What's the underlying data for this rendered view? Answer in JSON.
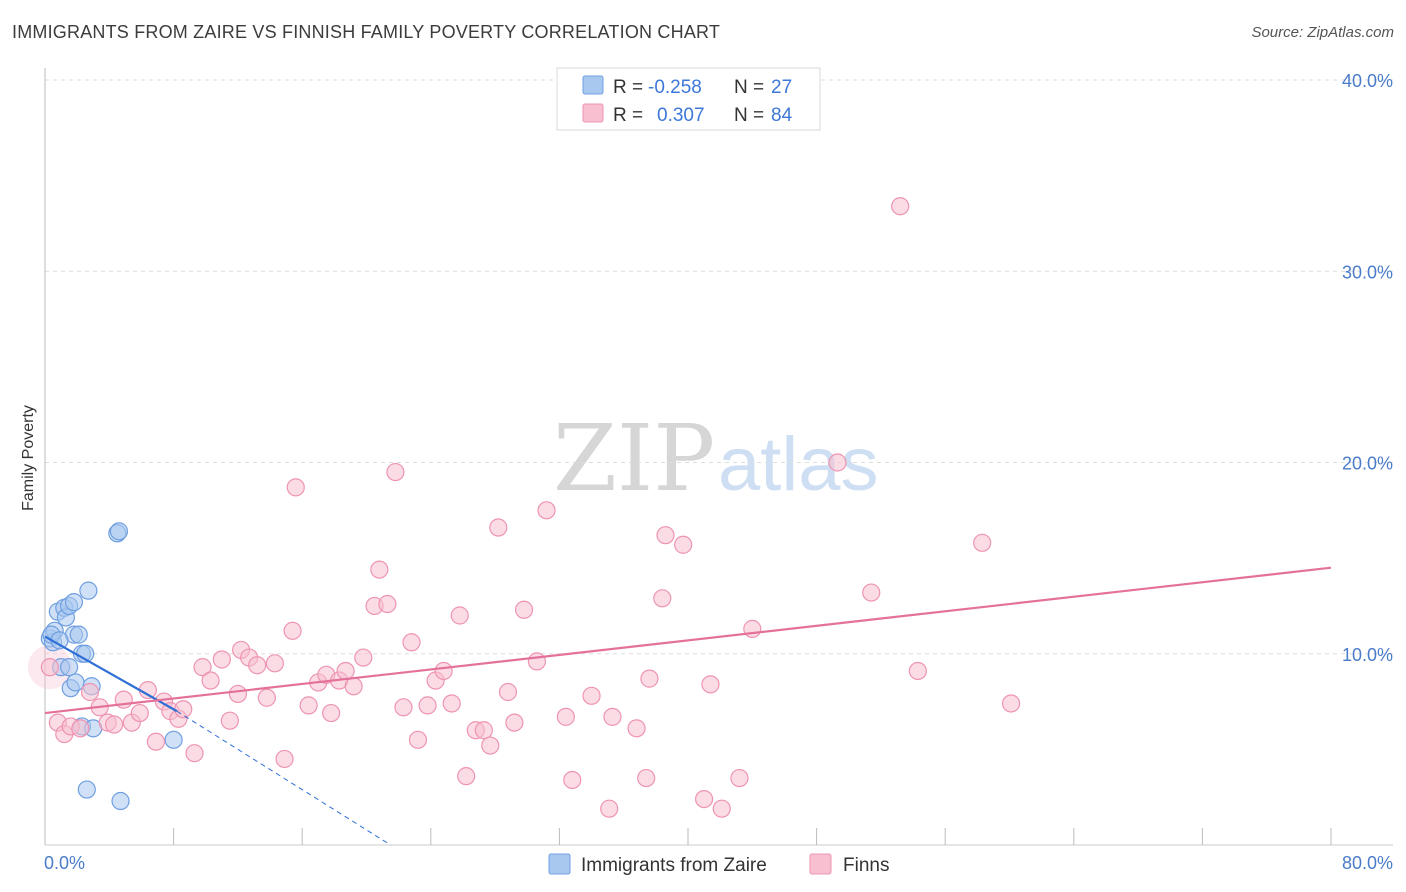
{
  "title": "IMMIGRANTS FROM ZAIRE VS FINNISH FAMILY POVERTY CORRELATION CHART",
  "source": "Source: ZipAtlas.com",
  "watermark": {
    "zip": "ZIP",
    "atlas": "atlas"
  },
  "colors": {
    "blue_fill": "#a9c8f0",
    "blue_stroke": "#6f9fe0",
    "blue_line": "#2f6fd6",
    "pink_fill": "#f7bfd0",
    "pink_stroke": "#ee94b2",
    "pink_line": "#e4719a",
    "tick_text": "#4a7cc9",
    "grid": "#dddddd"
  },
  "legend": {
    "rows": [
      {
        "r_label": "R =",
        "r_value": "-0.258",
        "n_label": "N =",
        "n_value": "27",
        "series": "blue"
      },
      {
        "r_label": "R =",
        "r_value": "0.307",
        "n_label": "N =",
        "n_value": "84",
        "series": "pink"
      }
    ]
  },
  "chart_data": {
    "type": "scatter",
    "title": "IMMIGRANTS FROM ZAIRE VS FINNISH FAMILY POVERTY CORRELATION CHART",
    "xlabel": "",
    "ylabel": "Family Poverty",
    "xlim": [
      0,
      80
    ],
    "ylim": [
      0,
      40
    ],
    "x_tick_labels": [
      "0.0%",
      "80.0%"
    ],
    "y_ticks": [
      10,
      20,
      30,
      40
    ],
    "y_tick_labels": [
      "10.0%",
      "20.0%",
      "30.0%",
      "40.0%"
    ],
    "grid": true,
    "legend_position": "top-center",
    "series": [
      {
        "name": "Immigrants from Zaire",
        "color": "blue",
        "r": -0.258,
        "n": 27,
        "trend": {
          "x0": 0,
          "y0": 10.9,
          "x1": 8.2,
          "y1": 7.0,
          "dashed_to_x": 21.5,
          "dashed_to_y": 0
        },
        "points": [
          [
            0.3,
            10.8
          ],
          [
            0.5,
            10.6
          ],
          [
            0.6,
            11.2
          ],
          [
            0.8,
            12.2
          ],
          [
            1.0,
            9.3
          ],
          [
            1.2,
            12.4
          ],
          [
            1.3,
            11.9
          ],
          [
            1.5,
            12.5
          ],
          [
            1.5,
            9.3
          ],
          [
            1.6,
            8.2
          ],
          [
            1.8,
            12.7
          ],
          [
            1.8,
            11.0
          ],
          [
            1.9,
            8.5
          ],
          [
            2.1,
            11.0
          ],
          [
            2.3,
            6.2
          ],
          [
            2.3,
            10.0
          ],
          [
            2.5,
            10.0
          ],
          [
            2.7,
            13.3
          ],
          [
            2.9,
            8.3
          ],
          [
            3.0,
            6.1
          ],
          [
            4.5,
            16.3
          ],
          [
            4.6,
            16.4
          ],
          [
            8.0,
            5.5
          ],
          [
            2.6,
            2.9
          ],
          [
            4.7,
            2.3
          ],
          [
            0.4,
            11.0
          ],
          [
            0.9,
            10.7
          ]
        ]
      },
      {
        "name": "Finns",
        "color": "pink",
        "r": 0.307,
        "n": 84,
        "trend": {
          "x0": 0,
          "y0": 6.9,
          "x1": 80,
          "y1": 14.5
        },
        "points": [
          [
            0.3,
            9.3
          ],
          [
            0.8,
            6.4
          ],
          [
            1.2,
            5.8
          ],
          [
            1.6,
            6.2
          ],
          [
            2.2,
            6.1
          ],
          [
            2.8,
            8.0
          ],
          [
            3.4,
            7.2
          ],
          [
            3.9,
            6.4
          ],
          [
            4.3,
            6.3
          ],
          [
            4.9,
            7.6
          ],
          [
            5.4,
            6.4
          ],
          [
            5.9,
            6.9
          ],
          [
            6.4,
            8.1
          ],
          [
            6.9,
            5.4
          ],
          [
            7.4,
            7.5
          ],
          [
            7.8,
            7.0
          ],
          [
            8.3,
            6.6
          ],
          [
            8.6,
            7.1
          ],
          [
            9.3,
            4.8
          ],
          [
            9.8,
            9.3
          ],
          [
            10.3,
            8.6
          ],
          [
            11.0,
            9.7
          ],
          [
            11.5,
            6.5
          ],
          [
            12.0,
            7.9
          ],
          [
            12.2,
            10.2
          ],
          [
            12.7,
            9.8
          ],
          [
            13.2,
            9.4
          ],
          [
            13.8,
            7.7
          ],
          [
            14.3,
            9.5
          ],
          [
            14.9,
            4.5
          ],
          [
            15.4,
            11.2
          ],
          [
            15.6,
            18.7
          ],
          [
            16.4,
            7.3
          ],
          [
            17.0,
            8.5
          ],
          [
            17.5,
            8.9
          ],
          [
            17.8,
            6.9
          ],
          [
            18.3,
            8.6
          ],
          [
            18.7,
            9.1
          ],
          [
            19.2,
            8.3
          ],
          [
            19.8,
            9.8
          ],
          [
            20.5,
            12.5
          ],
          [
            20.8,
            14.4
          ],
          [
            21.3,
            12.6
          ],
          [
            21.8,
            19.5
          ],
          [
            22.3,
            7.2
          ],
          [
            22.8,
            10.6
          ],
          [
            23.2,
            5.5
          ],
          [
            23.8,
            7.3
          ],
          [
            24.3,
            8.6
          ],
          [
            24.8,
            9.1
          ],
          [
            25.3,
            7.4
          ],
          [
            25.8,
            12.0
          ],
          [
            26.2,
            3.6
          ],
          [
            26.8,
            6.0
          ],
          [
            27.3,
            6.0
          ],
          [
            27.7,
            5.2
          ],
          [
            28.2,
            16.6
          ],
          [
            28.8,
            8.0
          ],
          [
            29.2,
            6.4
          ],
          [
            29.8,
            12.3
          ],
          [
            30.6,
            9.6
          ],
          [
            31.2,
            17.5
          ],
          [
            32.4,
            6.7
          ],
          [
            32.8,
            3.4
          ],
          [
            34.0,
            7.8
          ],
          [
            35.1,
            1.9
          ],
          [
            35.3,
            6.7
          ],
          [
            36.8,
            6.1
          ],
          [
            37.4,
            3.5
          ],
          [
            37.6,
            8.7
          ],
          [
            38.4,
            12.9
          ],
          [
            38.6,
            16.2
          ],
          [
            39.7,
            15.7
          ],
          [
            41.0,
            2.4
          ],
          [
            41.4,
            8.4
          ],
          [
            42.1,
            1.9
          ],
          [
            43.2,
            3.5
          ],
          [
            44.0,
            11.3
          ],
          [
            49.3,
            20.0
          ],
          [
            51.4,
            13.2
          ],
          [
            53.2,
            33.4
          ],
          [
            54.3,
            9.1
          ],
          [
            58.3,
            15.8
          ],
          [
            60.1,
            7.4
          ]
        ]
      }
    ]
  },
  "bottom_legend": [
    {
      "label": "Immigrants from Zaire",
      "series": "blue"
    },
    {
      "label": "Finns",
      "series": "pink"
    }
  ]
}
